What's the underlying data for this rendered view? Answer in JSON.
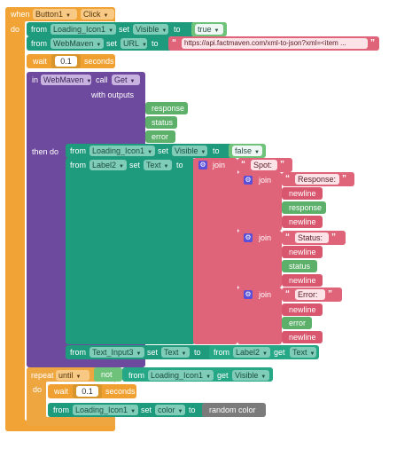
{
  "event": {
    "when": "when",
    "component": "Button1",
    "event_name": "Click",
    "do": "do"
  },
  "s1": {
    "from": "from",
    "component": "Loading_Icon1",
    "set": "set",
    "property": "Visible",
    "to": "to",
    "value": "true"
  },
  "s2": {
    "from": "from",
    "component": "WebMaven",
    "set": "set",
    "property": "URL",
    "to": "to",
    "value": "https://api.factmaven.com/xml-to-json?xml=<item ..."
  },
  "wait1": {
    "wait": "wait",
    "value": "0.1",
    "unit": "seconds"
  },
  "call": {
    "in": "in",
    "component": "WebMaven",
    "call": "call",
    "method": "Get",
    "with_outputs": "with outputs",
    "outputs": [
      "response",
      "status",
      "error"
    ],
    "then_do": "then do"
  },
  "s3": {
    "from": "from",
    "component": "Loading_Icon1",
    "set": "set",
    "property": "Visible",
    "to": "to",
    "value": "false"
  },
  "s4": {
    "from": "from",
    "component": "Label2",
    "set": "set",
    "property": "Text",
    "to": "to",
    "join": "join"
  },
  "join1": {
    "spot": "Spot:",
    "join": "join",
    "label": "Response:",
    "parts": [
      "newline",
      "response",
      "newline"
    ]
  },
  "join2": {
    "join": "join",
    "label": "Status:",
    "parts": [
      "newline",
      "status",
      "newline"
    ]
  },
  "join3": {
    "join": "join",
    "label": "Error:",
    "parts": [
      "newline",
      "error",
      "newline"
    ]
  },
  "s5": {
    "from": "from",
    "component": "Text_Input3",
    "set": "set",
    "property": "Text",
    "to": "to",
    "src_from": "from",
    "src_component": "Label2",
    "get": "get",
    "src_property": "Text"
  },
  "repeat": {
    "repeat": "repeat",
    "mode": "until",
    "not": "not",
    "from": "from",
    "component": "Loading_Icon1",
    "get": "get",
    "property": "Visible",
    "do": "do"
  },
  "wait2": {
    "wait": "wait",
    "value": "0.1",
    "unit": "seconds"
  },
  "s6": {
    "from": "from",
    "component": "Loading_Icon1",
    "set": "set",
    "property": "color",
    "to": "to",
    "value": "random color"
  },
  "colors": {
    "event": "#f2a335",
    "component": "#1e9a7d",
    "text": "#e06479",
    "webmaven": "#6e4a9e",
    "logic": "#5cb06a"
  }
}
